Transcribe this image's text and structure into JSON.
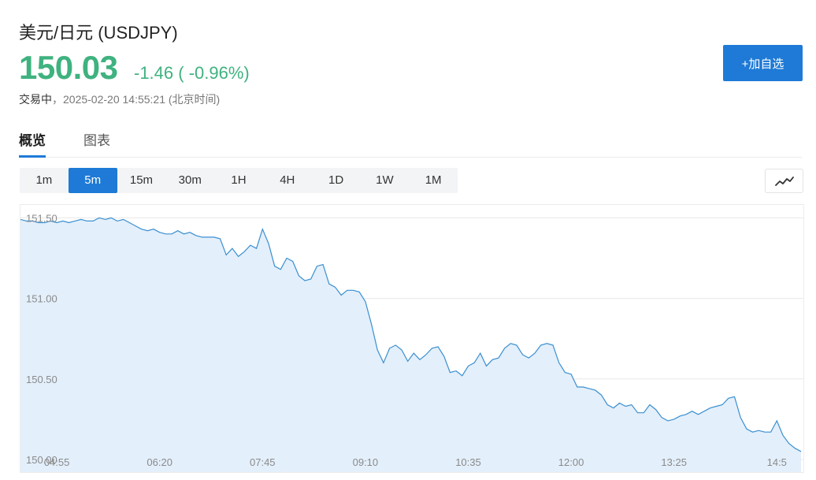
{
  "header": {
    "title": "美元/日元 (USDJPY)",
    "price": "150.03",
    "change": "-1.46 ( -0.96%)",
    "status_label": "交易中",
    "status_sep": "，",
    "timestamp": "2025-02-20 14:55:21",
    "timezone": "(北京时间)"
  },
  "actions": {
    "add_watchlist": "+加自选"
  },
  "tabs": [
    {
      "label": "概览",
      "active": true
    },
    {
      "label": "图表",
      "active": false
    }
  ],
  "timeframes": [
    {
      "label": "1m",
      "active": false
    },
    {
      "label": "5m",
      "active": true
    },
    {
      "label": "15m",
      "active": false
    },
    {
      "label": "30m",
      "active": false
    },
    {
      "label": "1H",
      "active": false
    },
    {
      "label": "4H",
      "active": false
    },
    {
      "label": "1D",
      "active": false
    },
    {
      "label": "1W",
      "active": false
    },
    {
      "label": "1M",
      "active": false
    }
  ],
  "chart_type_icon": "line-chart-icon",
  "colors": {
    "accent": "#1e7ad6",
    "down": "#3fb27f",
    "line": "#3a8fd0",
    "fill": "#e3effb"
  },
  "chart_data": {
    "type": "area",
    "yticks": [
      "151.50",
      "151.00",
      "150.50",
      "150.00"
    ],
    "ytick_values": [
      151.5,
      151.0,
      150.5,
      150.0
    ],
    "ylim": [
      150.0,
      151.58
    ],
    "xticks": [
      "04:55",
      "06:20",
      "07:45",
      "09:10",
      "10:35",
      "12:00",
      "13:25",
      "14:5"
    ],
    "xtick_index": [
      6,
      23,
      40,
      57,
      74,
      91,
      108,
      125
    ],
    "series": [
      {
        "values": [
          151.49,
          151.48,
          151.48,
          151.47,
          151.47,
          151.48,
          151.47,
          151.48,
          151.47,
          151.48,
          151.49,
          151.48,
          151.48,
          151.5,
          151.49,
          151.5,
          151.48,
          151.49,
          151.47,
          151.45,
          151.43,
          151.42,
          151.43,
          151.41,
          151.4,
          151.4,
          151.42,
          151.4,
          151.41,
          151.39,
          151.38,
          151.38,
          151.38,
          151.37,
          151.27,
          151.31,
          151.26,
          151.29,
          151.33,
          151.31,
          151.43,
          151.34,
          151.2,
          151.18,
          151.25,
          151.23,
          151.14,
          151.11,
          151.12,
          151.2,
          151.21,
          151.09,
          151.07,
          151.02,
          151.05,
          151.05,
          151.04,
          150.98,
          150.84,
          150.68,
          150.6,
          150.69,
          150.71,
          150.68,
          150.61,
          150.66,
          150.62,
          150.65,
          150.69,
          150.7,
          150.64,
          150.54,
          150.55,
          150.52,
          150.58,
          150.6,
          150.66,
          150.58,
          150.62,
          150.63,
          150.69,
          150.72,
          150.71,
          150.65,
          150.63,
          150.66,
          150.71,
          150.72,
          150.71,
          150.6,
          150.54,
          150.53,
          150.45,
          150.45,
          150.44,
          150.43,
          150.4,
          150.34,
          150.32,
          150.35,
          150.33,
          150.34,
          150.29,
          150.29,
          150.34,
          150.31,
          150.26,
          150.24,
          150.25,
          150.27,
          150.28,
          150.3,
          150.28,
          150.3,
          150.32,
          150.33,
          150.34,
          150.38,
          150.39,
          150.26,
          150.19,
          150.17,
          150.18,
          150.17,
          150.17,
          150.24,
          150.15,
          150.1,
          150.07,
          150.05
        ]
      }
    ]
  }
}
